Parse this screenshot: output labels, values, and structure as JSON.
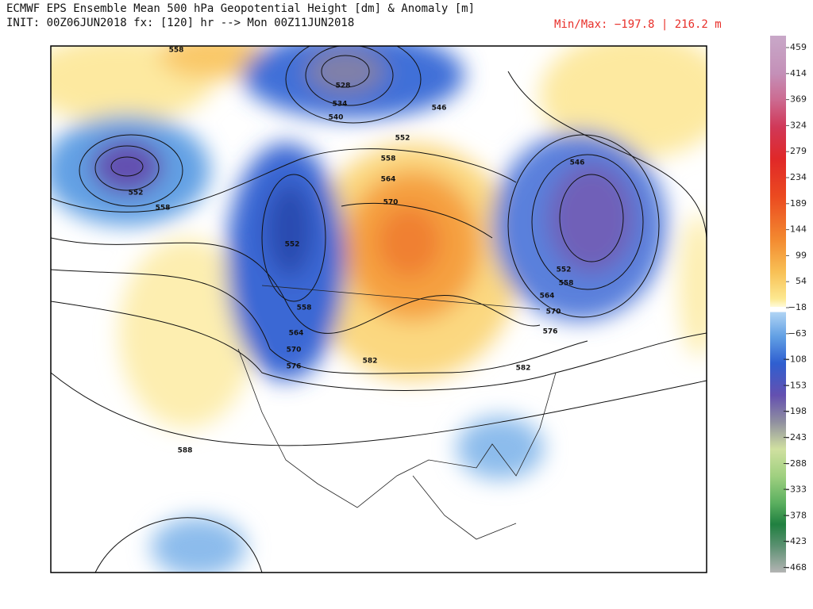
{
  "header": {
    "title": "ECMWF EPS Ensemble Mean 500 hPa Geopotential Height [dm] & Anomaly [m]",
    "subtitle": "INIT: 00Z06JUN2018 fx: [120] hr --> Mon 00Z11JUN2018",
    "minmax": "Min/Max: −197.8 | 216.2 m"
  },
  "colorbar": {
    "ticks": [
      459,
      414,
      369,
      324,
      279,
      234,
      189,
      144,
      99,
      54,
      {
        "value": -18,
        "label": "−18"
      },
      {
        "value": -63,
        "label": "−63"
      },
      {
        "value": -108,
        "label": "−108"
      },
      {
        "value": -153,
        "label": "−153"
      },
      {
        "value": -198,
        "label": "−198"
      },
      {
        "value": -243,
        "label": "−243"
      },
      {
        "value": -288,
        "label": "−288"
      },
      {
        "value": -333,
        "label": "−333"
      },
      {
        "value": -378,
        "label": "−378"
      },
      {
        "value": -423,
        "label": "−423"
      },
      {
        "value": -468,
        "label": "−468"
      }
    ]
  },
  "contour_labels": [
    "558",
    "528",
    "534",
    "540",
    "546",
    "552",
    "558",
    "564",
    "570",
    "546",
    "552",
    "558",
    "552",
    "558",
    "564",
    "570",
    "576",
    "582",
    "552",
    "558",
    "564",
    "570",
    "576",
    "582",
    "588"
  ]
}
